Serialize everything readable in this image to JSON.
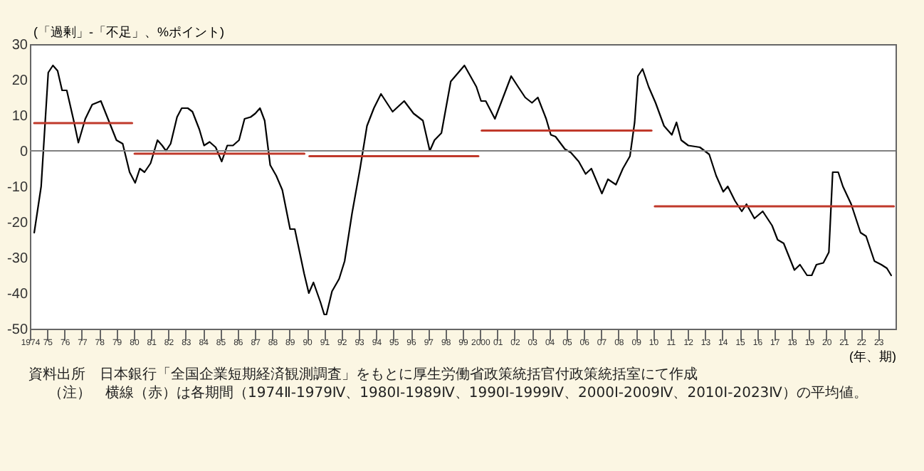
{
  "chart_data": {
    "type": "line",
    "ylabel": "(「過剰」-「不足」、%ポイント)",
    "xlabel": "(年、期)",
    "xlim": [
      1974,
      2024
    ],
    "xticks": [
      1974,
      {
        "value": 1975,
        "label": "75"
      },
      {
        "value": 1976,
        "label": "76"
      },
      {
        "value": 1977,
        "label": "77"
      },
      {
        "value": 1978,
        "label": "78"
      },
      {
        "value": 1979,
        "label": "79"
      },
      {
        "value": 1980,
        "label": "80"
      },
      {
        "value": 1981,
        "label": "81"
      },
      {
        "value": 1982,
        "label": "82"
      },
      {
        "value": 1983,
        "label": "83"
      },
      {
        "value": 1984,
        "label": "84"
      },
      {
        "value": 1985,
        "label": "85"
      },
      {
        "value": 1986,
        "label": "86"
      },
      {
        "value": 1987,
        "label": "87"
      },
      {
        "value": 1988,
        "label": "88"
      },
      {
        "value": 1989,
        "label": "89"
      },
      {
        "value": 1990,
        "label": "90"
      },
      {
        "value": 1991,
        "label": "91"
      },
      {
        "value": 1992,
        "label": "92"
      },
      {
        "value": 1993,
        "label": "93"
      },
      {
        "value": 1994,
        "label": "94"
      },
      {
        "value": 1995,
        "label": "95"
      },
      {
        "value": 1996,
        "label": "96"
      },
      {
        "value": 1997,
        "label": "97"
      },
      {
        "value": 1998,
        "label": "98"
      },
      {
        "value": 1999,
        "label": "99"
      },
      2000,
      {
        "value": 2001,
        "label": "01"
      },
      {
        "value": 2002,
        "label": "02"
      },
      {
        "value": 2003,
        "label": "03"
      },
      {
        "value": 2004,
        "label": "04"
      },
      {
        "value": 2005,
        "label": "05"
      },
      {
        "value": 2006,
        "label": "06"
      },
      {
        "value": 2007,
        "label": "07"
      },
      {
        "value": 2008,
        "label": "08"
      },
      {
        "value": 2009,
        "label": "09"
      },
      {
        "value": 2010,
        "label": "10"
      },
      {
        "value": 2011,
        "label": "11"
      },
      {
        "value": 2012,
        "label": "12"
      },
      {
        "value": 2013,
        "label": "13"
      },
      {
        "value": 2014,
        "label": "14"
      },
      {
        "value": 2015,
        "label": "15"
      },
      {
        "value": 2016,
        "label": "16"
      },
      {
        "value": 2017,
        "label": "17"
      },
      {
        "value": 2018,
        "label": "18"
      },
      {
        "value": 2019,
        "label": "19"
      },
      {
        "value": 2020,
        "label": "20"
      },
      {
        "value": 2021,
        "label": "21"
      },
      {
        "value": 2022,
        "label": "22"
      },
      {
        "value": 2023,
        "label": "23"
      }
    ],
    "ylim": [
      -50,
      30
    ],
    "yticks": [
      -50,
      -40,
      -30,
      -20,
      -10,
      0,
      10,
      20,
      30
    ],
    "series": [
      {
        "color": "#000000",
        "x": [
          1974.25,
          1974.65,
          1975.06,
          1975.33,
          1975.6,
          1975.86,
          1976.13,
          1976.53,
          1976.8,
          1977.2,
          1977.6,
          1978.1,
          1978.55,
          1979.0,
          1979.36,
          1979.76,
          1980.08,
          1980.35,
          1980.62,
          1980.97,
          1981.37,
          1981.64,
          1981.86,
          1982.13,
          1982.5,
          1982.77,
          1983.12,
          1983.39,
          1983.79,
          1984.06,
          1984.38,
          1984.73,
          1985.08,
          1985.4,
          1985.73,
          1986.08,
          1986.4,
          1986.75,
          1987.02,
          1987.29,
          1987.56,
          1987.88,
          1988.23,
          1988.58,
          1989.03,
          1989.3,
          1989.84,
          1990.11,
          1990.38,
          1990.78,
          1991.0,
          1991.13,
          1991.45,
          1991.86,
          1992.18,
          1992.61,
          1993.07,
          1993.47,
          1993.87,
          1994.28,
          1994.95,
          1995.62,
          1996.16,
          1996.7,
          1997.1,
          1997.37,
          1997.77,
          1998.31,
          1999.1,
          1999.79,
          2000.06,
          2000.33,
          2000.86,
          2001.8,
          2002.2,
          2002.61,
          2003.0,
          2003.34,
          2003.82,
          2004.09,
          2004.36,
          2004.9,
          2005.25,
          2005.7,
          2006.1,
          2006.43,
          2007.04,
          2007.39,
          2007.85,
          2008.25,
          2008.66,
          2008.93,
          2009.12,
          2009.39,
          2009.74,
          2010.14,
          2010.63,
          2011.08,
          2011.35,
          2011.62,
          2012.03,
          2012.7,
          2013.24,
          2013.64,
          2014.05,
          2014.31,
          2014.72,
          2015.12,
          2015.39,
          2015.85,
          2016.33,
          2016.87,
          2017.19,
          2017.54,
          2018.16,
          2018.48,
          2018.89,
          2019.16,
          2019.43,
          2019.83,
          2020.15,
          2020.37,
          2020.69,
          2020.96,
          2021.44,
          2021.98,
          2022.3,
          2022.78,
          2023.18,
          2023.5,
          2023.75
        ],
        "values": [
          -23,
          -10,
          22,
          24,
          22.5,
          17,
          17,
          8.5,
          2.3,
          9,
          13,
          14,
          8.5,
          3,
          2,
          -6,
          -9,
          -5,
          -6,
          -3.5,
          3,
          1.5,
          0,
          2,
          9.5,
          12,
          12,
          11,
          6,
          1.5,
          2.5,
          1,
          -3,
          1.5,
          1.5,
          3,
          9,
          9.5,
          10.5,
          12,
          8.5,
          -4,
          -7,
          -11,
          -22,
          -22,
          -34.5,
          -40,
          -37,
          -42.5,
          -46,
          -46,
          -39.5,
          -36,
          -31,
          -17.5,
          -5,
          7,
          12,
          16,
          11,
          14,
          10.5,
          8.5,
          0,
          3,
          5,
          19.5,
          24,
          18,
          14,
          14,
          9,
          21,
          18,
          15,
          13.5,
          15,
          9,
          4.5,
          4,
          0.5,
          -0.5,
          -3,
          -6.5,
          -5,
          -12,
          -8,
          -9.5,
          -5,
          -1.5,
          8,
          21,
          23,
          18,
          13.5,
          7,
          4.5,
          8,
          3,
          1.5,
          1,
          -1,
          -7,
          -11.5,
          -10,
          -14,
          -17,
          -15,
          -19,
          -17,
          -21,
          -25,
          -26,
          -33.5,
          -32,
          -35,
          -35,
          -32,
          -31.5,
          -28.5,
          -6,
          -6,
          -10,
          -15,
          -23,
          -24,
          -31,
          -32,
          -33,
          -35
        ]
      },
      {
        "color": "#c0392b",
        "x": [
          1974.25,
          1979.9
        ],
        "values": [
          7.8,
          7.8
        ]
      },
      {
        "color": "#c0392b",
        "x": [
          1980.05,
          1989.85
        ],
        "values": [
          -0.8,
          -0.8
        ]
      },
      {
        "color": "#c0392b",
        "x": [
          1990.15,
          1999.9
        ],
        "values": [
          -1.5,
          -1.5
        ]
      },
      {
        "color": "#c0392b",
        "x": [
          2000.1,
          2009.9
        ],
        "values": [
          5.7,
          5.7
        ]
      },
      {
        "color": "#c0392b",
        "x": [
          2010.1,
          2023.9
        ],
        "values": [
          -15.6,
          -15.6
        ]
      }
    ],
    "ref_lines": [
      {
        "axis": "y",
        "value": 0,
        "color": "#808080"
      }
    ],
    "annotations": [
      "資料出所　日本銀行「全国企業短期経済観測調査」をもとに厚生労働省政策統括官付政策統括室にて作成",
      "（注）　横線（赤）は各期間（1974Ⅱ-1979Ⅳ、1980Ⅰ-1989Ⅳ、1990Ⅰ-1999Ⅳ、2000Ⅰ-2009Ⅳ、2010Ⅰ-2023Ⅳ）の平均値。"
    ]
  }
}
